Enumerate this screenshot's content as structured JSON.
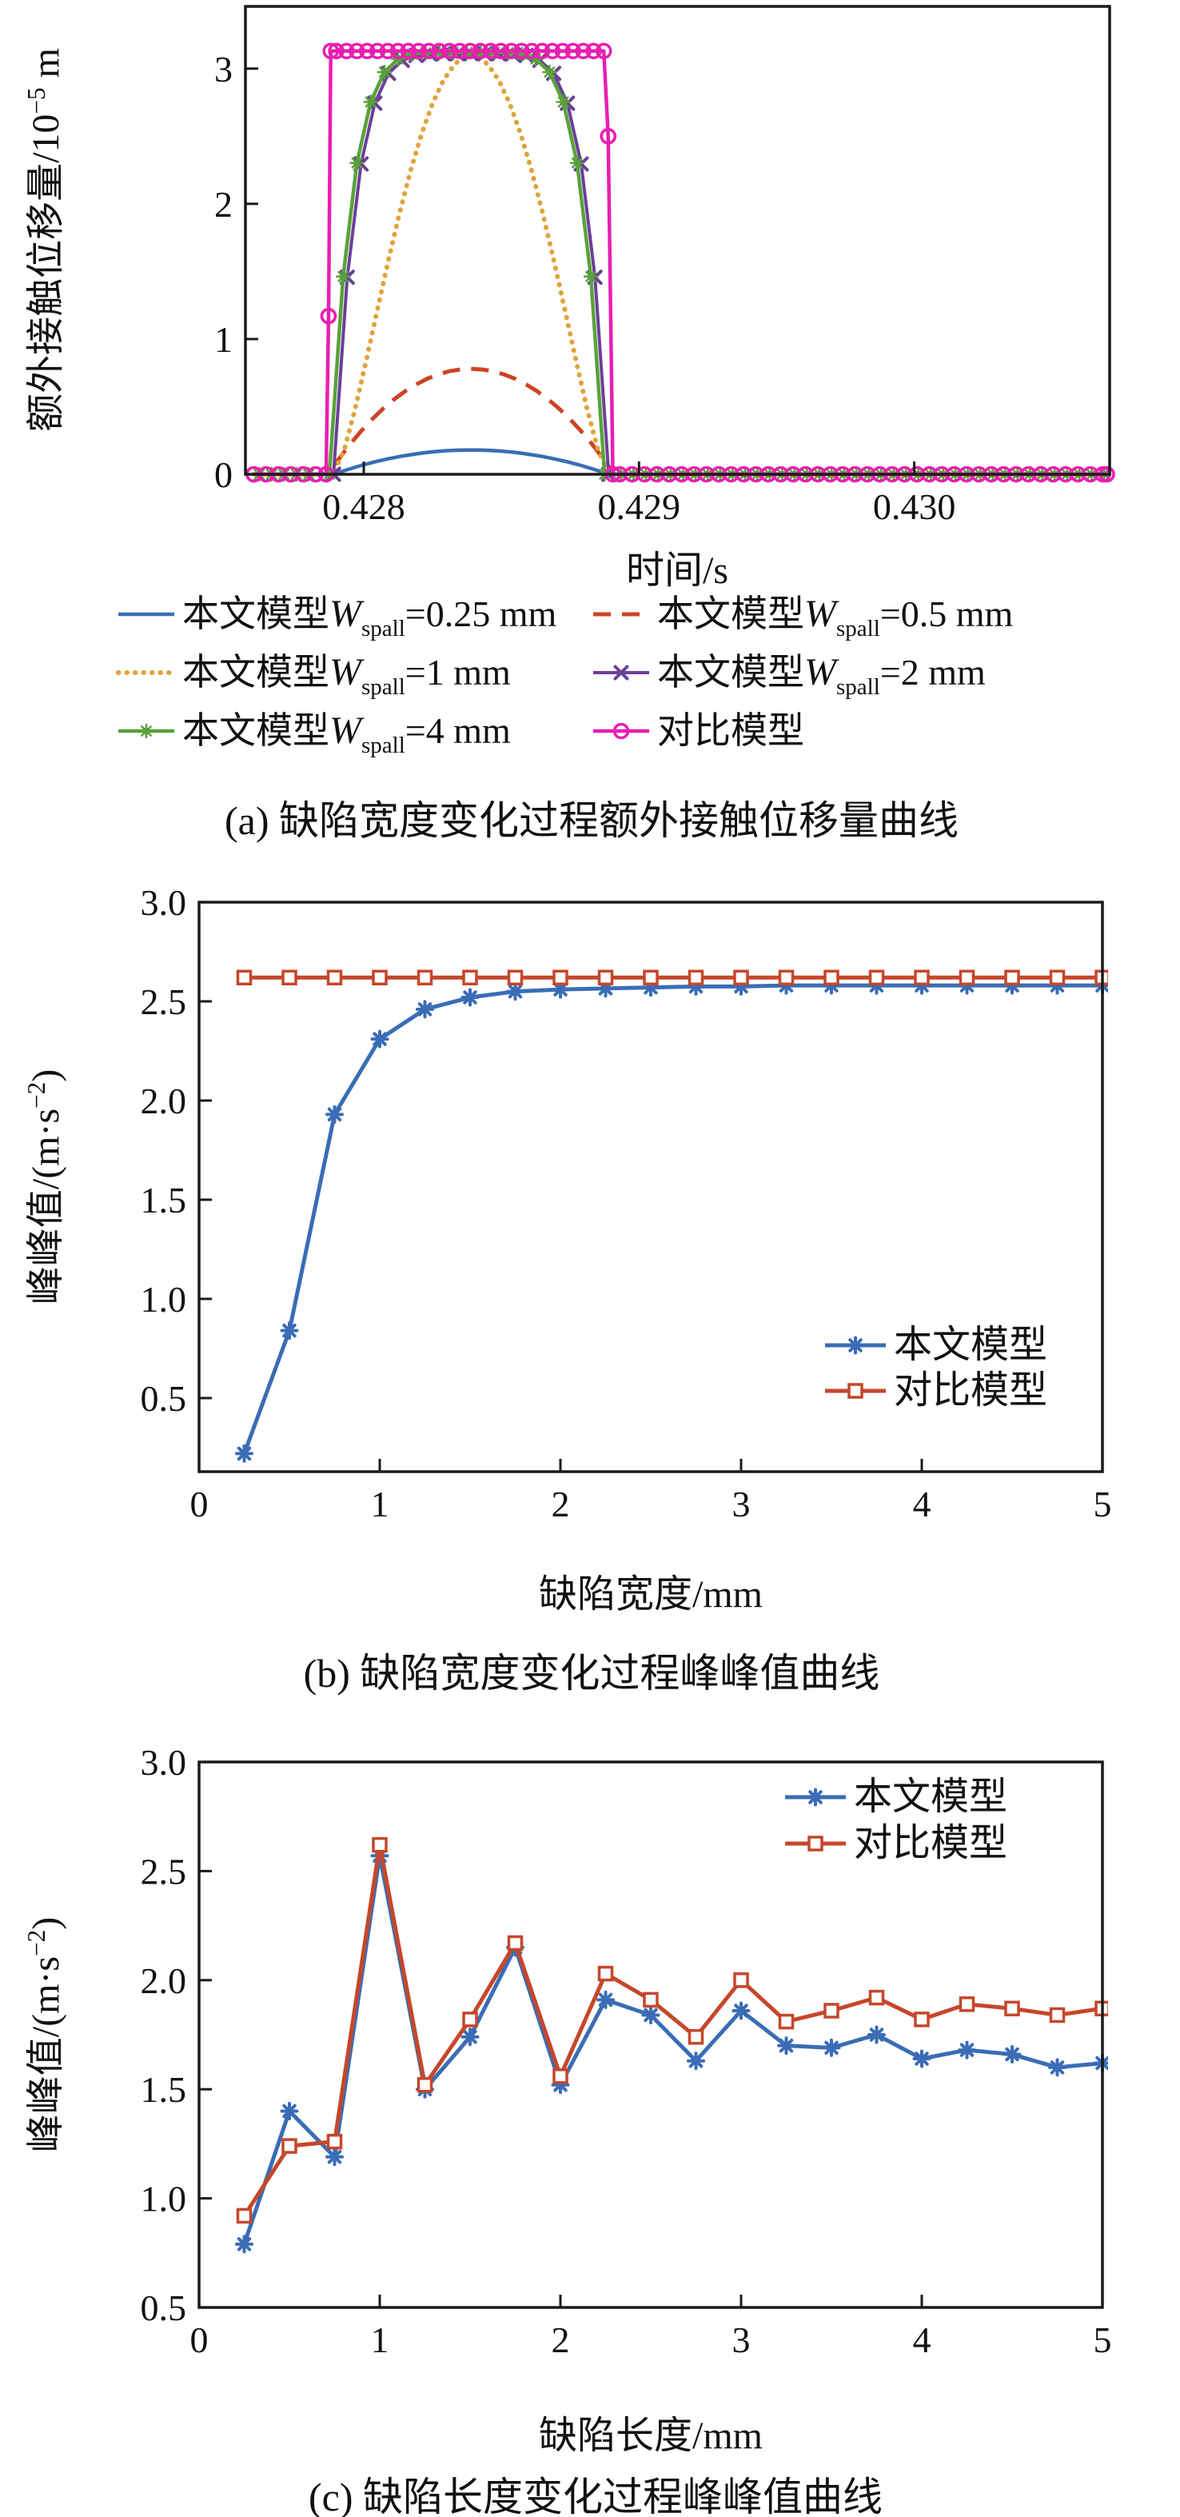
{
  "colors": {
    "blue": "#3A6DB5",
    "red_dash": "#CE4327",
    "orange": "#E0A33B",
    "purple": "#6B3F98",
    "green": "#59A23B",
    "magenta": "#E81FB0",
    "red2": "#C5472B",
    "axis": "#1a1a1a"
  },
  "labels": {
    "a": {
      "xlabel": "时间/s",
      "ylabel_pre": "额外接触位移量/10",
      "ylabel_sup": "−5",
      "ylabel_post": " m",
      "caption": "(a) 缺陷宽度变化过程额外接触位移量曲线"
    },
    "b": {
      "xlabel": "缺陷宽度/mm",
      "ylabel_pre": "峰峰值/(m·s",
      "ylabel_sup": "−2",
      "ylabel_post": ")",
      "caption": "(b) 缺陷宽度变化过程峰峰值曲线"
    },
    "c": {
      "xlabel": "缺陷长度/mm",
      "ylabel_pre": "峰峰值/(m·s",
      "ylabel_sup": "−2",
      "ylabel_post": ")",
      "caption": "(c) 缺陷长度变化过程峰峰值曲线"
    }
  },
  "chart_data": [
    {
      "id": "a",
      "type": "line",
      "xlabel": "时间/s",
      "ylabel": "额外接触位移量/10^-5 m",
      "xlim": [
        0.42757,
        0.43071
      ],
      "ylim": [
        0,
        3.46
      ],
      "x_ticks": [
        0.428,
        0.429,
        0.43
      ],
      "x_tick_labels": [
        "0.428",
        "0.429",
        "0.430"
      ],
      "y_ticks": [
        0,
        1,
        2,
        3
      ],
      "y_tick_labels": [
        "0",
        "1",
        "2",
        "3"
      ],
      "grid": false,
      "legend_position": "below",
      "legend": [
        {
          "cn": "本文模型",
          "var": "W",
          "sub": "spall",
          "rest": "=0.25 mm",
          "series": 0
        },
        {
          "cn": "本文模型",
          "var": "W",
          "sub": "spall",
          "rest": "=0.5 mm",
          "series": 1
        },
        {
          "cn": "本文模型",
          "var": "W",
          "sub": "spall",
          "rest": "=1 mm",
          "series": 2
        },
        {
          "cn": "本文模型",
          "var": "W",
          "sub": "spall",
          "rest": "=2 mm",
          "series": 3
        },
        {
          "cn": "本文模型",
          "var": "W",
          "sub": "spall",
          "rest": "=4 mm",
          "series": 4
        },
        {
          "cn": "对比模型",
          "series": 5
        }
      ],
      "series": [
        {
          "name": "本文模型 W_spall=0.25 mm",
          "color": "blue",
          "width": 4.5,
          "dash": "none",
          "marker": "none",
          "x": [
            0.4276,
            0.42789,
            0.42794,
            0.42799,
            0.42804,
            0.42809,
            0.42814,
            0.42819,
            0.42824,
            0.42829,
            0.42834,
            0.42839,
            0.42844,
            0.42849,
            0.42854,
            0.42859,
            0.42864,
            0.42869,
            0.42874,
            0.42879,
            0.42884,
            0.42889,
            0.4307
          ],
          "y": [
            0,
            0,
            0.034,
            0.065,
            0.092,
            0.115,
            0.135,
            0.151,
            0.164,
            0.173,
            0.178,
            0.18,
            0.178,
            0.173,
            0.164,
            0.151,
            0.135,
            0.115,
            0.092,
            0.065,
            0.034,
            0,
            0
          ]
        },
        {
          "name": "本文模型 W_spall=0.5 mm",
          "color": "red_dash",
          "width": 5,
          "dash": "dashed",
          "marker": "none",
          "x": [
            0.4276,
            0.42787,
            0.42791,
            0.42795,
            0.42799,
            0.42803,
            0.42807,
            0.42811,
            0.42815,
            0.42819,
            0.42823,
            0.42827,
            0.42831,
            0.42835,
            0.42839,
            0.42843,
            0.42847,
            0.42851,
            0.42855,
            0.42859,
            0.42863,
            0.42867,
            0.42871,
            0.42875,
            0.42879,
            0.42883,
            0.42887,
            0.42891,
            0.4307
          ],
          "y": [
            0,
            0,
            0.115,
            0.222,
            0.318,
            0.406,
            0.485,
            0.554,
            0.614,
            0.664,
            0.706,
            0.738,
            0.762,
            0.775,
            0.78,
            0.775,
            0.762,
            0.738,
            0.706,
            0.664,
            0.614,
            0.554,
            0.485,
            0.406,
            0.318,
            0.222,
            0.115,
            0,
            0
          ]
        },
        {
          "name": "本文模型 W_spall=1 mm",
          "color": "orange",
          "width": 6,
          "dash": "dotted",
          "marker": "none",
          "x": [
            0.4276,
            0.42789,
            0.42793,
            0.42797,
            0.42801,
            0.42805,
            0.42809,
            0.42813,
            0.42817,
            0.42821,
            0.42825,
            0.42829,
            0.42833,
            0.42837,
            0.42841,
            0.42845,
            0.42849,
            0.42853,
            0.42857,
            0.42861,
            0.42865,
            0.42869,
            0.42873,
            0.42877,
            0.42881,
            0.42885,
            0.42889,
            0.4307
          ],
          "y": [
            0,
            0,
            0.187,
            0.495,
            0.851,
            1.222,
            1.587,
            1.932,
            2.245,
            2.517,
            2.743,
            2.916,
            3.033,
            3.093,
            3.093,
            3.033,
            2.916,
            2.743,
            2.517,
            2.245,
            1.932,
            1.587,
            1.222,
            0.851,
            0.495,
            0.187,
            0,
            0
          ]
        },
        {
          "name": "本文模型 W_spall=2 mm",
          "color": "purple",
          "width": 4,
          "dash": "none",
          "marker": "x",
          "marker_skip_ends": 1,
          "x": [
            0.4276,
            0.42789,
            0.42794,
            0.42799,
            0.42804,
            0.42809,
            0.42814,
            0.42819,
            0.42824,
            0.42829,
            0.42834,
            0.42839,
            0.42844,
            0.42849,
            0.42854,
            0.42859,
            0.42864,
            0.42869,
            0.42874,
            0.42879,
            0.42884,
            0.42889,
            0.4307
          ],
          "y": [
            0,
            0,
            1.457,
            2.295,
            2.744,
            2.965,
            3.061,
            3.097,
            3.108,
            3.11,
            3.11,
            3.11,
            3.11,
            3.11,
            3.108,
            3.097,
            3.061,
            2.965,
            2.744,
            2.295,
            1.457,
            0,
            0
          ]
        },
        {
          "name": "本文模型 W_spall=4 mm",
          "color": "green",
          "width": 4.5,
          "dash": "none",
          "marker": "dotburst",
          "marker_skip_ends": 1,
          "x": [
            0.4276,
            0.427875,
            0.427925,
            0.427975,
            0.428025,
            0.428075,
            0.428125,
            0.428175,
            0.428225,
            0.428275,
            0.428325,
            0.428375,
            0.428425,
            0.428475,
            0.428525,
            0.428575,
            0.428625,
            0.428675,
            0.428725,
            0.428775,
            0.428825,
            0.428875,
            0.4307
          ],
          "y": [
            0,
            0,
            1.462,
            2.302,
            2.753,
            2.974,
            3.071,
            3.107,
            3.118,
            3.12,
            3.12,
            3.12,
            3.12,
            3.12,
            3.118,
            3.107,
            3.071,
            2.974,
            2.753,
            2.302,
            1.462,
            0,
            0
          ],
          "marker_runs": [
            {
              "from": 0.42762,
              "to": 0.427842,
              "step": 4.5e-05,
              "y": 0
            },
            {
              "from": 0.428935,
              "to": 0.43069,
              "step": 4.5e-05,
              "y": 0
            }
          ]
        },
        {
          "name": "对比模型",
          "color": "magenta",
          "width": 4.5,
          "dash": "none",
          "marker": "circle",
          "x": [
            0.4276,
            0.427863,
            0.427872,
            0.42788,
            0.428872,
            0.428888,
            0.428905,
            0.4307
          ],
          "y": [
            0,
            0,
            1.17,
            3.13,
            3.13,
            2.5,
            0,
            0
          ],
          "marker_points": [
            [
              0.427872,
              1.17
            ],
            [
              0.428888,
              2.5
            ]
          ],
          "marker_runs": [
            {
              "from": 0.4276,
              "to": 0.42784,
              "step": 4.5e-05,
              "y": 0
            },
            {
              "from": 0.4279,
              "to": 0.428872,
              "step": 3.74e-05,
              "y": 3.13
            },
            {
              "from": 0.42893,
              "to": 0.43069,
              "step": 4.5e-05,
              "y": 0
            }
          ]
        }
      ]
    },
    {
      "id": "b",
      "type": "line",
      "xlabel": "缺陷宽度/mm",
      "ylabel": "峰峰值/(m·s^-2)",
      "xlim": [
        0,
        5
      ],
      "ylim": [
        0.129,
        3.0
      ],
      "x_ticks": [
        0,
        1,
        2,
        3,
        4,
        5
      ],
      "x_tick_labels": [
        "0",
        "1",
        "2",
        "3",
        "4",
        "5"
      ],
      "y_ticks": [
        0.5,
        1.0,
        1.5,
        2.0,
        2.5,
        3.0
      ],
      "y_tick_labels": [
        "0.5",
        "1.0",
        "1.5",
        "2.0",
        "2.5",
        "3.0"
      ],
      "grid": false,
      "legend_position": "inside-lower-right",
      "legend": [
        {
          "cn": "本文模型",
          "series": 0
        },
        {
          "cn": "对比模型",
          "series": 1
        }
      ],
      "series": [
        {
          "name": "本文模型",
          "color": "blue",
          "width": 5,
          "dash": "none",
          "marker": "star",
          "x": [
            0.25,
            0.5,
            0.75,
            1,
            1.25,
            1.5,
            1.75,
            2,
            2.25,
            2.5,
            2.75,
            3,
            3.25,
            3.5,
            3.75,
            4,
            4.25,
            4.5,
            4.75,
            5
          ],
          "y": [
            0.22,
            0.84,
            1.93,
            2.31,
            2.46,
            2.52,
            2.55,
            2.56,
            2.565,
            2.57,
            2.575,
            2.575,
            2.58,
            2.58,
            2.58,
            2.58,
            2.58,
            2.58,
            2.58,
            2.58
          ]
        },
        {
          "name": "对比模型",
          "color": "red2",
          "width": 5,
          "dash": "none",
          "marker": "square",
          "x": [
            0.25,
            0.5,
            0.75,
            1,
            1.25,
            1.5,
            1.75,
            2,
            2.25,
            2.5,
            2.75,
            3,
            3.25,
            3.5,
            3.75,
            4,
            4.25,
            4.5,
            4.75,
            5
          ],
          "y": [
            2.62,
            2.62,
            2.62,
            2.62,
            2.62,
            2.62,
            2.62,
            2.62,
            2.62,
            2.62,
            2.62,
            2.62,
            2.62,
            2.62,
            2.62,
            2.62,
            2.62,
            2.62,
            2.62,
            2.62
          ]
        }
      ]
    },
    {
      "id": "c",
      "type": "line",
      "xlabel": "缺陷长度/mm",
      "ylabel": "峰峰值/(m·s^-2)",
      "xlim": [
        0,
        5
      ],
      "ylim": [
        0.5,
        3.0
      ],
      "x_ticks": [
        0,
        1,
        2,
        3,
        4,
        5
      ],
      "x_tick_labels": [
        "0",
        "1",
        "2",
        "3",
        "4",
        "5"
      ],
      "y_ticks": [
        0.5,
        1.0,
        1.5,
        2.0,
        2.5,
        3.0
      ],
      "y_tick_labels": [
        "0.5",
        "1.0",
        "1.5",
        "2.0",
        "2.5",
        "3.0"
      ],
      "grid": false,
      "legend_position": "inside-top-right",
      "legend": [
        {
          "cn": "本文模型",
          "series": 0
        },
        {
          "cn": "对比模型",
          "series": 1
        }
      ],
      "series": [
        {
          "name": "本文模型",
          "color": "blue",
          "width": 5,
          "dash": "none",
          "marker": "star",
          "x": [
            0.25,
            0.5,
            0.75,
            1,
            1.25,
            1.5,
            1.75,
            2,
            2.25,
            2.5,
            2.75,
            3,
            3.25,
            3.5,
            3.75,
            4,
            4.25,
            4.5,
            4.75,
            5
          ],
          "y": [
            0.79,
            1.4,
            1.19,
            2.57,
            1.5,
            1.74,
            2.15,
            1.52,
            1.91,
            1.84,
            1.63,
            1.86,
            1.7,
            1.69,
            1.75,
            1.64,
            1.68,
            1.66,
            1.6,
            1.62
          ]
        },
        {
          "name": "对比模型",
          "color": "red2",
          "width": 5,
          "dash": "none",
          "marker": "square",
          "x": [
            0.25,
            0.5,
            0.75,
            1,
            1.25,
            1.5,
            1.75,
            2,
            2.25,
            2.5,
            2.75,
            3,
            3.25,
            3.5,
            3.75,
            4,
            4.25,
            4.5,
            4.75,
            5
          ],
          "y": [
            0.92,
            1.24,
            1.26,
            2.62,
            1.52,
            1.82,
            2.17,
            1.56,
            2.03,
            1.91,
            1.74,
            2.0,
            1.81,
            1.86,
            1.92,
            1.82,
            1.89,
            1.87,
            1.84,
            1.87
          ]
        }
      ]
    }
  ]
}
